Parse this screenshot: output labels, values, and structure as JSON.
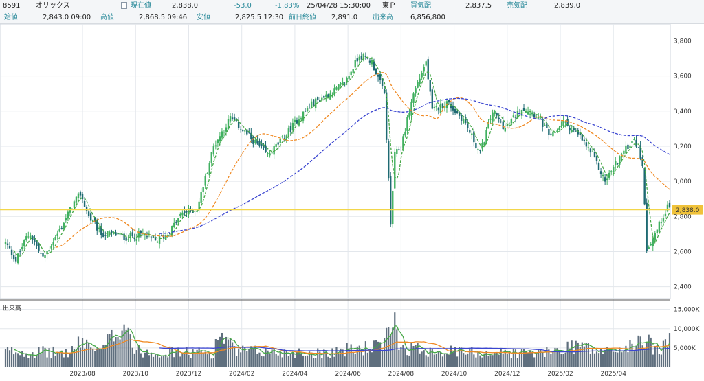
{
  "header": {
    "code": "8591",
    "name": "オリックス",
    "current_label": "現在値",
    "current": "2,838.0",
    "change": "-53.0",
    "change_pct": "-1.83%",
    "datetime": "25/04/28 15:30:00",
    "market": "東Ｐ",
    "bid_label": "買気配",
    "bid": "2,837.5",
    "ask_label": "売気配",
    "ask": "2,839.0"
  },
  "stats": {
    "open_label": "始値",
    "open": "2,843.0 09:00",
    "high_label": "高値",
    "high": "2,868.5 09:46",
    "low_label": "安値",
    "low": "2,825.5 12:30",
    "prev_label": "前日終値",
    "prev": "2,891.0",
    "volume_label": "出来高",
    "volume": "6,856,800"
  },
  "colors": {
    "up": "#40b060",
    "down": "#1e6a72",
    "ma_short": "#46a846",
    "ma_mid": "#f08a24",
    "ma_long": "#3a45d0",
    "current_line": "#f2d64a",
    "volume_bar": "#5f6f7e"
  },
  "chart_data": {
    "type": "candlestick",
    "price_ticks": [
      "3,800",
      "3,600",
      "3,400",
      "3,200",
      "3,000",
      "2,800",
      "2,600",
      "2,400"
    ],
    "price_tick_values": [
      3800,
      3600,
      3400,
      3200,
      3000,
      2800,
      2600,
      2400
    ],
    "ylim": [
      2340,
      3880
    ],
    "volume_label": "出来高",
    "volume_ticks": [
      "15,000K",
      "10,000K",
      "5,000K"
    ],
    "volume_tick_values": [
      15000,
      10000,
      5000
    ],
    "volume_ylim": [
      0,
      16000
    ],
    "current_price": 2838.0,
    "current_price_label": "2,838.0",
    "x_labels": [
      "2023/08",
      "2023/10",
      "2023/12",
      "2024/02",
      "2024/04",
      "2024/06",
      "2024/08",
      "2024/10",
      "2024/12",
      "2025/02",
      "2025/04"
    ],
    "close_anchors": [
      [
        0,
        2650
      ],
      [
        5,
        2550
      ],
      [
        10,
        2680
      ],
      [
        12,
        2700
      ],
      [
        18,
        2560
      ],
      [
        25,
        2700
      ],
      [
        32,
        2860
      ],
      [
        36,
        2930
      ],
      [
        40,
        2800
      ],
      [
        46,
        2700
      ],
      [
        52,
        2700
      ],
      [
        58,
        2680
      ],
      [
        66,
        2700
      ],
      [
        72,
        2660
      ],
      [
        78,
        2700
      ],
      [
        85,
        2820
      ],
      [
        92,
        2840
      ],
      [
        100,
        3200
      ],
      [
        108,
        3360
      ],
      [
        115,
        3280
      ],
      [
        120,
        3220
      ],
      [
        126,
        3150
      ],
      [
        134,
        3250
      ],
      [
        140,
        3350
      ],
      [
        148,
        3450
      ],
      [
        156,
        3500
      ],
      [
        163,
        3560
      ],
      [
        170,
        3720
      ],
      [
        176,
        3680
      ],
      [
        182,
        3500
      ],
      [
        185,
        2750
      ],
      [
        187,
        3150
      ],
      [
        190,
        3200
      ],
      [
        196,
        3500
      ],
      [
        202,
        3680
      ],
      [
        205,
        3400
      ],
      [
        212,
        3450
      ],
      [
        220,
        3350
      ],
      [
        228,
        3160
      ],
      [
        234,
        3400
      ],
      [
        240,
        3300
      ],
      [
        248,
        3420
      ],
      [
        255,
        3380
      ],
      [
        262,
        3250
      ],
      [
        268,
        3340
      ],
      [
        276,
        3250
      ],
      [
        282,
        3150
      ],
      [
        288,
        3000
      ],
      [
        294,
        3120
      ],
      [
        302,
        3250
      ],
      [
        306,
        3100
      ],
      [
        308,
        2620
      ],
      [
        312,
        2700
      ],
      [
        318,
        2860
      ]
    ],
    "volume_anchors": [
      [
        0,
        4500
      ],
      [
        30,
        4000
      ],
      [
        38,
        7500
      ],
      [
        45,
        4000
      ],
      [
        58,
        13500
      ],
      [
        62,
        4500
      ],
      [
        100,
        4000
      ],
      [
        103,
        10000
      ],
      [
        110,
        4500
      ],
      [
        150,
        4000
      ],
      [
        182,
        6000
      ],
      [
        186,
        14500
      ],
      [
        190,
        5500
      ],
      [
        220,
        4200
      ],
      [
        260,
        4000
      ],
      [
        275,
        6500
      ],
      [
        285,
        4200
      ],
      [
        300,
        5500
      ],
      [
        309,
        8000
      ],
      [
        312,
        4500
      ],
      [
        318,
        6850
      ]
    ],
    "ma_periods": [
      5,
      25,
      75
    ],
    "legend": "none",
    "grid": true
  }
}
